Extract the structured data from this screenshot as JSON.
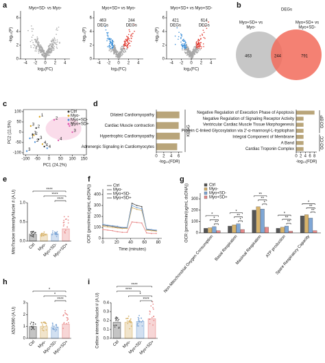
{
  "panels": {
    "a": {
      "letter": "a",
      "xlabel": "log₂(FC)",
      "ylabel": "-log₁₀(P)",
      "plots": [
        {
          "title": "Myo+SD- vs Myo-",
          "xlim": [
            -5,
            5
          ],
          "xticks": [
            -4,
            -2,
            0,
            2,
            4
          ],
          "ylim": [
            0,
            7
          ],
          "yticks": [
            0,
            2,
            4,
            6
          ]
        },
        {
          "title": "Myo+SD+ vs Myo-",
          "xlim": [
            -5,
            5
          ],
          "xticks": [
            -4,
            -2,
            0,
            2,
            4
          ],
          "ylim": [
            0,
            7
          ],
          "yticks": [
            0,
            2,
            4,
            6
          ],
          "left_label": [
            "463",
            "DEGs"
          ],
          "right_label": [
            "244",
            "DEGs"
          ]
        },
        {
          "title": "Myo+SD+ vs Myo+SD-",
          "xlim": [
            -5,
            5
          ],
          "xticks": [
            -4,
            -2,
            0,
            2,
            4
          ],
          "ylim": [
            0,
            7
          ],
          "yticks": [
            0,
            2,
            4,
            6
          ],
          "left_label": [
            "421",
            "DEGs"
          ],
          "right_label": [
            "614",
            "DEGs"
          ]
        }
      ]
    },
    "b": {
      "letter": "b",
      "title": "DEGs",
      "left_set": [
        "Myo+SD+ vs",
        "Myo-"
      ],
      "right_set": [
        "Myo+SD+ vs",
        "Myo+SD-"
      ],
      "left_only": 463,
      "both": 244,
      "right_only": 791
    },
    "c": {
      "letter": "c",
      "type": "scatter",
      "xlabel": "PC1 (24.2%)",
      "ylabel": "PC2 (11.5%)",
      "xlim": [
        -110,
        160
      ],
      "xticks": [
        -100,
        -50,
        0,
        50,
        100,
        150
      ],
      "ylim": [
        -110,
        110
      ],
      "yticks": [
        -100,
        -50,
        0,
        50,
        100
      ],
      "series": [
        {
          "name": "Ctrl",
          "color": "#333333",
          "x": [
            -70,
            -55,
            -45,
            -20
          ],
          "y": [
            -10,
            20,
            -35,
            -70
          ],
          "labels": [
            "1",
            "2",
            "3",
            "4"
          ]
        },
        {
          "name": "Myo-",
          "color": "#d9a520",
          "x": [
            -40,
            -65,
            -78,
            -28
          ],
          "y": [
            75,
            -15,
            30,
            -58
          ],
          "labels": [
            "1",
            "2",
            "3",
            "4"
          ]
        },
        {
          "name": "Myo+SD-",
          "color": "#4a90d9",
          "x": [
            -82,
            -60,
            -95,
            -8
          ],
          "y": [
            -30,
            -48,
            -92,
            -78
          ],
          "labels": [
            "1",
            "2",
            "3",
            "4"
          ]
        },
        {
          "name": "Myo+SD+",
          "color": "#e05cb0",
          "x": [
            88,
            22,
            100,
            40
          ],
          "y": [
            30,
            60,
            0,
            -40
          ],
          "labels": [
            "1",
            "2",
            "3",
            "4"
          ]
        }
      ]
    },
    "d": {
      "letter": "d",
      "xlabel": "-log₁₀(FDR)",
      "color": "#b9a57a",
      "kegg": {
        "label": "KEGG",
        "categories": [
          "Dilated Cardiomyopathy",
          "Cardiac Muscle contraction",
          "Hypertrophic Cardiomyopathy",
          "Adrenergic Signaling in Cardiomyocytes"
        ],
        "values": [
          6.2,
          6,
          6.3,
          5.6
        ],
        "xlim": [
          0,
          7
        ],
        "xticks": [
          0,
          2,
          4,
          6
        ]
      },
      "go": {
        "xlim": [
          0,
          9
        ],
        "xticks": [
          0,
          2,
          4,
          6,
          8
        ],
        "sections": [
          {
            "label": "GO:BP",
            "categories": [
              "Negative Regulation of Execution Phase of Apoptosis",
              "Negative Regulation of Signaling Receptor Activity",
              "Ventricular Cardiac Muscle Tissue Morphogenesis",
              "Protein C-linked Glycosylation via 2'-α-mannosyl-L-tryptophan"
            ],
            "values": [
              8,
              3.2,
              3.2,
              3.2
            ]
          },
          {
            "label": "GO:CC",
            "categories": [
              "Integral Component of Membrane",
              "A Band",
              "Cardiac Troponin Complex"
            ],
            "values": [
              3.2,
              3.2,
              3.2
            ]
          }
        ]
      }
    },
    "e": {
      "letter": "e",
      "type": "bar",
      "ylabel": "MitoTracker intensity/Nuclei # (A.U)",
      "categories": [
        "Ctrl",
        "Myo-",
        "Myo+SD-",
        "Myo+SD+"
      ],
      "values": [
        0.18,
        0.18,
        0.19,
        0.32
      ],
      "colors": [
        "#555555",
        "#d8b36a",
        "#7fa7d6",
        "#e88a8a"
      ],
      "ylim": [
        0,
        1
      ],
      "yticks": [
        {
          "value": 0,
          "label": "0.0"
        },
        0.5,
        {
          "value": 1,
          "label": "1.0"
        }
      ],
      "significance": [
        "****",
        "****",
        "****"
      ]
    },
    "f": {
      "letter": "f",
      "type": "line",
      "xlabel": "Time (minutes)",
      "ylabel": "OCR (pmol/min/(ug/mL dsDNA))",
      "x": [
        0,
        7,
        14,
        21,
        28,
        35,
        42,
        49,
        56,
        63,
        70,
        77
      ],
      "xlim": [
        0,
        85
      ],
      "xticks": [
        0,
        20,
        40,
        60,
        80
      ],
      "ylim": [
        0,
        450
      ],
      "yticks": [
        0,
        100,
        200,
        300,
        400
      ],
      "series": [
        {
          "name": "Ctrl",
          "color": "#555555",
          "values": [
            120,
            115,
            110,
            100,
            95,
            95,
            320,
            300,
            290,
            80,
            75,
            70
          ]
        },
        {
          "name": "Myo-",
          "color": "#d8b36a",
          "values": [
            110,
            105,
            100,
            95,
            90,
            90,
            280,
            265,
            255,
            75,
            70,
            65
          ]
        },
        {
          "name": "Myo+SD-",
          "color": "#7fa7d6",
          "values": [
            130,
            120,
            115,
            110,
            100,
            100,
            300,
            280,
            270,
            85,
            80,
            75
          ]
        },
        {
          "name": "Myo+SD+",
          "color": "#e88a8a",
          "values": [
            80,
            75,
            70,
            60,
            55,
            55,
            150,
            145,
            140,
            50,
            45,
            45
          ]
        }
      ]
    },
    "g": {
      "letter": "g",
      "type": "grouped-bar",
      "ylabel": "OCR (pmol/min/(ug/mL dsDNA))",
      "categories": [
        "Non-Mitochondrial Oxygen Consumption",
        "Basal Respiration",
        "Maximal Respiration",
        "ATP production",
        "Spare Respiratory Capacity"
      ],
      "ylim": [
        0,
        350
      ],
      "yticks": [
        0,
        100,
        200,
        300
      ],
      "series": [
        {
          "name": "Ctrl",
          "color": "#555555",
          "values": [
            40,
            60,
            200,
            40,
            150
          ]
        },
        {
          "name": "Myo-",
          "color": "#d8b36a",
          "values": [
            45,
            70,
            230,
            50,
            160
          ]
        },
        {
          "name": "Myo+SD-",
          "color": "#7fa7d6",
          "values": [
            55,
            80,
            210,
            60,
            130
          ]
        },
        {
          "name": "Myo+SD+",
          "color": "#e88a8a",
          "values": [
            20,
            30,
            50,
            15,
            20
          ]
        }
      ],
      "significance": [
        [
          "**",
          "*",
          "*"
        ],
        [
          "*",
          "**",
          "*"
        ],
        [
          "*",
          "**",
          "**"
        ],
        [
          "**",
          "**",
          "*"
        ],
        [
          "**",
          "**",
          "*"
        ]
      ]
    },
    "h": {
      "letter": "h",
      "type": "bar",
      "ylabel": "λ520/590 (A.U)",
      "categories": [
        "Ctrl",
        "Myo-",
        "Myo+SD-",
        "Myo+SD+"
      ],
      "values": [
        1.0,
        1.0,
        0.95,
        1.2
      ],
      "colors": [
        "#555555",
        "#d8b36a",
        "#7fa7d6",
        "#e88a8a"
      ],
      "ylim": [
        0,
        3
      ],
      "yticks": [
        0,
        1,
        2,
        3
      ],
      "significance": [
        "****",
        "*",
        "*"
      ]
    },
    "i": {
      "letter": "i",
      "type": "bar",
      "ylabel": "Cellrox intensity/Nuclei # (A.U)",
      "categories": [
        "Ctrl",
        "Myo-",
        "Myo+SD-",
        "Myo+SD+"
      ],
      "values": [
        0.18,
        0.18,
        0.19,
        0.22
      ],
      "colors": [
        "#555555",
        "#d8b36a",
        "#7fa7d6",
        "#e88a8a"
      ],
      "ylim": [
        0,
        0.4
      ],
      "yticks": [
        {
          "value": 0,
          "label": "0.0"
        },
        0.1,
        0.2,
        0.3,
        0.4
      ],
      "significance": [
        "****",
        "*",
        "****",
        "****"
      ]
    }
  }
}
